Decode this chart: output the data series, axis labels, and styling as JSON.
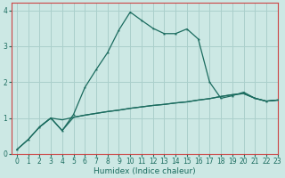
{
  "xlabel": "Humidex (Indice chaleur)",
  "bg_color": "#cce8e4",
  "grid_color": "#aacfcb",
  "line_color": "#1a6b5e",
  "spine_color": "#cc4444",
  "xlim": [
    -0.5,
    23
  ],
  "ylim": [
    0,
    4.2
  ],
  "xticks": [
    0,
    1,
    2,
    3,
    4,
    5,
    6,
    7,
    8,
    9,
    10,
    11,
    12,
    13,
    14,
    15,
    16,
    17,
    18,
    19,
    20,
    21,
    22,
    23
  ],
  "yticks": [
    0,
    1,
    2,
    3,
    4
  ],
  "line1_x": [
    0,
    1,
    2,
    3,
    4,
    5,
    6,
    7,
    8,
    9,
    10,
    11,
    12,
    13,
    14,
    15,
    16,
    17,
    18,
    19,
    20,
    21,
    22,
    23
  ],
  "line1_y": [
    0.12,
    0.4,
    0.75,
    1.0,
    0.65,
    1.1,
    1.85,
    2.35,
    2.82,
    3.45,
    3.95,
    3.72,
    3.5,
    3.35,
    3.35,
    3.48,
    3.2,
    2.0,
    1.55,
    1.62,
    1.72,
    1.55,
    1.47,
    1.5
  ],
  "line2_x": [
    0,
    1,
    2,
    3,
    4,
    5,
    6,
    7,
    8,
    9,
    10,
    11,
    12,
    13,
    14,
    15,
    16,
    17,
    18,
    19,
    20,
    21,
    22,
    23
  ],
  "line2_y": [
    0.12,
    0.4,
    0.75,
    1.0,
    0.95,
    1.02,
    1.08,
    1.13,
    1.18,
    1.22,
    1.27,
    1.31,
    1.35,
    1.38,
    1.42,
    1.45,
    1.5,
    1.54,
    1.6,
    1.65,
    1.68,
    1.55,
    1.47,
    1.5
  ],
  "line3_x": [
    2,
    3,
    4,
    5,
    6,
    7,
    8,
    9,
    10,
    11,
    12,
    13,
    14,
    15,
    16,
    17,
    18,
    19,
    20,
    21,
    22,
    23
  ],
  "line3_y": [
    0.75,
    1.0,
    0.65,
    1.02,
    1.08,
    1.13,
    1.18,
    1.22,
    1.27,
    1.31,
    1.35,
    1.38,
    1.42,
    1.45,
    1.5,
    1.54,
    1.6,
    1.65,
    1.68,
    1.55,
    1.47,
    1.5
  ],
  "tick_fontsize": 5.5,
  "xlabel_fontsize": 6.5,
  "marker_size": 2.5,
  "line_width": 0.9
}
